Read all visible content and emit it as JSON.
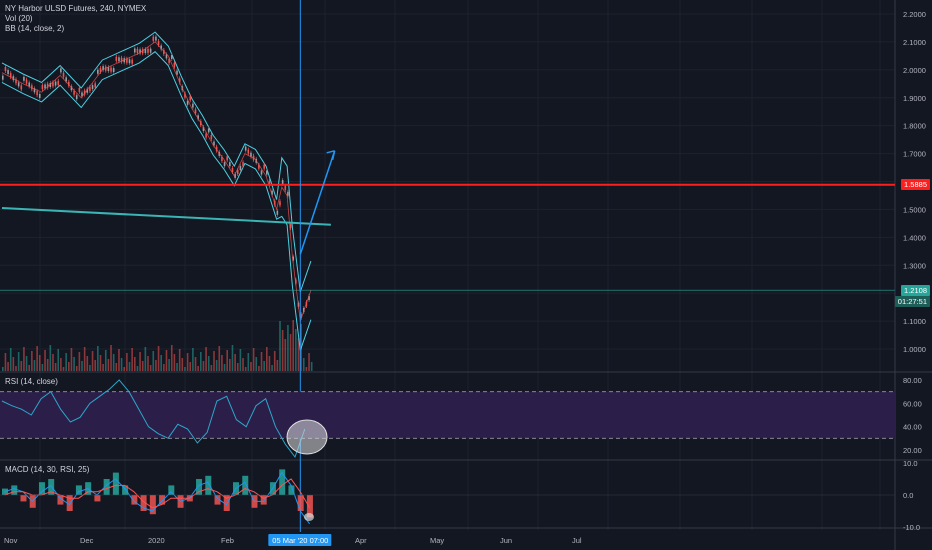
{
  "chart_data": [
    {
      "type": "line",
      "legend_lines": [
        "NY Harbor ULSD Futures, 240, NYMEX",
        "Vol (20)",
        "BB (14, close, 2)"
      ],
      "price_ticks": [
        "2.2000",
        "2.1000",
        "2.0000",
        "1.9000",
        "1.8000",
        "1.7000",
        "1.6000",
        "1.5000",
        "1.4000",
        "1.3000",
        "1.2000",
        "1.1000",
        "1.0000"
      ],
      "ylim": [
        0.95,
        2.21
      ],
      "x_ticks": [
        "Nov",
        "Dec",
        "2020",
        "Feb",
        "Apr",
        "May",
        "Jun",
        "Jul"
      ],
      "crosshair_label": "05 Mar '20   07:00",
      "horizontal_level": {
        "value": 1.5885,
        "label": "1.5885",
        "color": "#ff1e1e"
      },
      "last_price": {
        "value": 1.2108,
        "label": "1.2108",
        "countdown": "01:27:51",
        "color": "#26a69a"
      },
      "price_path_x_index": [
        0,
        8,
        15,
        22,
        30,
        38,
        45,
        52,
        58,
        63,
        68,
        72,
        76,
        80,
        84,
        88,
        92,
        96,
        100,
        104,
        106,
        108,
        110,
        113,
        117
      ],
      "price_series": [
        1.99,
        1.95,
        1.92,
        1.98,
        1.9,
        2.0,
        2.03,
        2.06,
        2.1,
        2.05,
        1.94,
        1.86,
        1.8,
        1.73,
        1.68,
        1.62,
        1.7,
        1.68,
        1.62,
        1.5,
        1.58,
        1.55,
        1.33,
        1.1,
        1.21
      ],
      "drawings": {
        "trendline": {
          "from": [
            0,
            1.505
          ],
          "to": [
            117,
            1.445
          ],
          "color": "#3ab4b4"
        },
        "projection_arrow": {
          "from": [
            113,
            1.34
          ],
          "to": [
            126,
            1.71
          ],
          "color": "#2196f3"
        }
      }
    },
    {
      "type": "line",
      "legend": "RSI (14, close)",
      "ticks": [
        "80.00",
        "60.00",
        "40.00",
        "20.00"
      ],
      "ylim": [
        10,
        85
      ],
      "band": [
        30,
        70
      ],
      "series": [
        62,
        58,
        55,
        50,
        64,
        70,
        55,
        44,
        48,
        60,
        66,
        72,
        80,
        70,
        55,
        40,
        34,
        30,
        42,
        38,
        26,
        35,
        62,
        66,
        46,
        40,
        58,
        64,
        40,
        25,
        14,
        38
      ]
    },
    {
      "type": "bar",
      "legend": "MACD (14, 30, RSI, 25)",
      "ticks": [
        "10.0",
        "0.0",
        "-10.0"
      ],
      "ylim": [
        -12,
        12
      ],
      "histogram": [
        2,
        3,
        -2,
        -4,
        4,
        5,
        -3,
        -5,
        3,
        4,
        -2,
        5,
        7,
        3,
        -3,
        -5,
        -6,
        -3,
        3,
        -4,
        -2,
        5,
        6,
        -3,
        -5,
        4,
        6,
        -4,
        -3,
        4,
        8,
        3,
        -5,
        -7
      ],
      "macd_line": [
        1,
        2,
        1,
        -2,
        1,
        3,
        -1,
        -3,
        1,
        2,
        0,
        3,
        5,
        2,
        -2,
        -4,
        -5,
        -2,
        1,
        -2,
        -1,
        3,
        4,
        -1,
        -3,
        2,
        4,
        -2,
        -2,
        2,
        7,
        3,
        -5,
        -9
      ],
      "signal_line": [
        0,
        1,
        1,
        0,
        0,
        1,
        0,
        -1,
        -1,
        1,
        1,
        2,
        3,
        3,
        1,
        -2,
        -4,
        -3,
        -1,
        -1,
        -1,
        1,
        2,
        1,
        -1,
        0,
        2,
        1,
        -1,
        0,
        3,
        5,
        1,
        -4
      ]
    }
  ],
  "colors": {
    "background": "#131722",
    "grid": "#1e222d",
    "bull": "#26a69a",
    "bear": "#ef5350",
    "bb": "#4dd0e1",
    "rsi_band": "#2b1f4a",
    "highlight": "#d8d8d8"
  }
}
